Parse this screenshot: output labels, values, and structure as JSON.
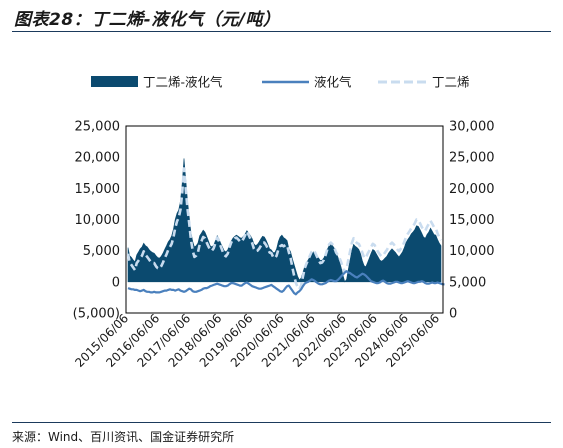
{
  "title": "图表28：丁二烯-液化气（元/吨）",
  "source": "来源：Wind、百川资讯、国金证券研究所",
  "chart_data": {
    "type": "area",
    "series": [
      {
        "name": "丁二烯-液化气",
        "kind": "area",
        "axis": "left",
        "color": "#0b4a6f",
        "values": [
          5500,
          4200,
          3900,
          3500,
          3200,
          4300,
          4800,
          5300,
          5600,
          6200,
          5800,
          5600,
          5200,
          4900,
          4700,
          4600,
          4200,
          3900,
          3800,
          4100,
          4600,
          5200,
          5800,
          6400,
          6800,
          7400,
          8500,
          10000,
          11000,
          11500,
          13000,
          15800,
          19800,
          16500,
          13000,
          10500,
          8000,
          6500,
          5600,
          5800,
          6200,
          7400,
          7800,
          8300,
          8000,
          7300,
          6600,
          5800,
          5600,
          5900,
          6600,
          7400,
          6900,
          6200,
          5600,
          5000,
          4800,
          5100,
          5900,
          6500,
          7000,
          7300,
          7500,
          7300,
          7100,
          7000,
          7300,
          7700,
          8200,
          7800,
          7400,
          6900,
          6100,
          5800,
          6000,
          6400,
          6900,
          7300,
          7200,
          6700,
          6000,
          5300,
          5100,
          4700,
          4700,
          5300,
          6500,
          7200,
          7500,
          7100,
          6900,
          6600,
          5300,
          4800,
          3700,
          2800,
          1800,
          900,
          300,
          600,
          1500,
          2400,
          3000,
          3500,
          4000,
          4400,
          4800,
          4600,
          4200,
          3800,
          3400,
          3500,
          3800,
          4500,
          5200,
          5800,
          6000,
          5800,
          5400,
          4600,
          4000,
          3200,
          2200,
          1000,
          0,
          400,
          2000,
          3500,
          5000,
          6000,
          5700,
          5500,
          5200,
          4500,
          3400,
          2600,
          2400,
          3100,
          3800,
          4600,
          5200,
          5000,
          4500,
          4000,
          3500,
          3300,
          3500,
          3800,
          4100,
          4600,
          5000,
          5300,
          5000,
          4700,
          4300,
          4000,
          4400,
          4800,
          5500,
          6300,
          6800,
          7200,
          7700,
          8000,
          8400,
          9000,
          8900,
          8400,
          7800,
          7200,
          7000,
          7600,
          8000,
          8600,
          8100,
          7600,
          7500,
          6800,
          6200,
          5800
        ]
      },
      {
        "name": "液化气",
        "kind": "line",
        "axis": "right",
        "color": "#4a80bd",
        "values": [
          4000,
          3900,
          3800,
          3800,
          3700,
          3700,
          3600,
          3500,
          3600,
          3700,
          3500,
          3400,
          3400,
          3300,
          3300,
          3400,
          3300,
          3300,
          3300,
          3400,
          3500,
          3600,
          3600,
          3700,
          3800,
          3700,
          3700,
          3600,
          3700,
          3800,
          3600,
          3500,
          3400,
          3500,
          3700,
          3900,
          3800,
          3500,
          3400,
          3400,
          3500,
          3600,
          3700,
          3900,
          4000,
          4000,
          4100,
          4300,
          4400,
          4500,
          4600,
          4700,
          4600,
          4500,
          4400,
          4300,
          4300,
          4400,
          4600,
          4800,
          4800,
          4700,
          4600,
          4500,
          4400,
          4400,
          4600,
          4800,
          4900,
          4700,
          4500,
          4300,
          4200,
          4100,
          4000,
          3900,
          3900,
          4000,
          4100,
          4200,
          4300,
          4400,
          4500,
          4300,
          4100,
          3900,
          3700,
          3500,
          3400,
          3600,
          4000,
          4300,
          4400,
          4000,
          3600,
          3200,
          3000,
          3300,
          3500,
          3800,
          4300,
          4700,
          4900,
          5000,
          5200,
          5400,
          5300,
          5100,
          4900,
          4700,
          4600,
          4600,
          4700,
          4800,
          5000,
          5200,
          5300,
          5200,
          5100,
          5100,
          5300,
          5600,
          5900,
          6200,
          6500,
          6700,
          6500,
          6400,
          6200,
          6000,
          5800,
          5700,
          5900,
          6100,
          6300,
          6200,
          6000,
          5700,
          5400,
          5100,
          5000,
          4900,
          4800,
          4800,
          4900,
          5100,
          5200,
          5000,
          4800,
          4700,
          4700,
          4800,
          4900,
          5000,
          5000,
          4900,
          4800,
          4800,
          4900,
          5000,
          5100,
          5000,
          4900,
          4800,
          4800,
          4900,
          5000,
          5000,
          5100,
          5000,
          4800,
          4700,
          4700,
          4800,
          4900,
          4800,
          4800,
          4900,
          4800,
          4700,
          4600,
          4600
        ]
      },
      {
        "name": "丁二烯",
        "kind": "dashed",
        "axis": "right",
        "color": "#c9dcef",
        "values": [
          9500,
          8100,
          7700,
          7300,
          6900,
          8000,
          8400,
          8800,
          9200,
          9900,
          9300,
          9000,
          8600,
          8200,
          8000,
          8000,
          7500,
          7200,
          7100,
          7500,
          8100,
          8800,
          9400,
          10100,
          10600,
          11100,
          12200,
          13600,
          14700,
          15300,
          16600,
          19300,
          23200,
          20000,
          16700,
          14400,
          11800,
          10000,
          9000,
          9200,
          9700,
          11000,
          11500,
          12200,
          12000,
          11300,
          10700,
          10100,
          10000,
          10400,
          11200,
          12100,
          11500,
          10700,
          10000,
          9300,
          9100,
          9500,
          10500,
          11300,
          11800,
          12000,
          12100,
          11800,
          11500,
          11400,
          11900,
          12500,
          13100,
          12500,
          11900,
          11200,
          10300,
          9900,
          10000,
          10300,
          10800,
          11300,
          11300,
          10900,
          10300,
          9700,
          9600,
          9000,
          8800,
          9200,
          10200,
          10700,
          10900,
          10700,
          10900,
          10900,
          9700,
          8800,
          7300,
          6000,
          4800,
          4200,
          3800,
          4400,
          5800,
          7100,
          7900,
          8500,
          9200,
          9800,
          10100,
          9700,
          9100,
          8500,
          8000,
          8100,
          8500,
          9300,
          10200,
          11000,
          11300,
          11000,
          10500,
          9700,
          9300,
          8800,
          8100,
          7200,
          6500,
          7100,
          8500,
          9900,
          11200,
          12000,
          11500,
          11200,
          11100,
          10500,
          9700,
          8900,
          8800,
          9500,
          10000,
          10600,
          11100,
          10900,
          10300,
          9800,
          9400,
          9100,
          9300,
          9700,
          10100,
          10600,
          11000,
          11300,
          11000,
          10600,
          10200,
          9900,
          10300,
          10700,
          11400,
          12200,
          12700,
          13100,
          13600,
          13900,
          14400,
          15000,
          14900,
          14400,
          13800,
          13300,
          13200,
          13800,
          14300,
          14800,
          14300,
          13800,
          13600,
          12800,
          12100,
          11700
        ]
      }
    ],
    "x_range": [
      "2015/06/06",
      "2025/06/06"
    ],
    "x_ticks": [
      "2015/06/06",
      "2016/06/06",
      "2017/06/06",
      "2018/06/06",
      "2019/06/06",
      "2020/06/06",
      "2021/06/06",
      "2022/06/06",
      "2023/06/06",
      "2024/06/06",
      "2025/06/06"
    ],
    "y_left": {
      "ticks": [
        "(5,000)",
        "0",
        "5,000",
        "10,000",
        "15,000",
        "20,000",
        "25,000"
      ],
      "tick_values": [
        -5000,
        0,
        5000,
        10000,
        15000,
        20000,
        25000
      ],
      "ylim": [
        -5000,
        25000
      ],
      "negative_color": "#e02020"
    },
    "y_right": {
      "ticks": [
        "0",
        "5,000",
        "10,000",
        "15,000",
        "20,000",
        "25,000",
        "30,000"
      ],
      "tick_values": [
        0,
        5000,
        10000,
        15000,
        20000,
        25000,
        30000
      ],
      "ylim": [
        0,
        30000
      ]
    },
    "legend_position": "top"
  }
}
